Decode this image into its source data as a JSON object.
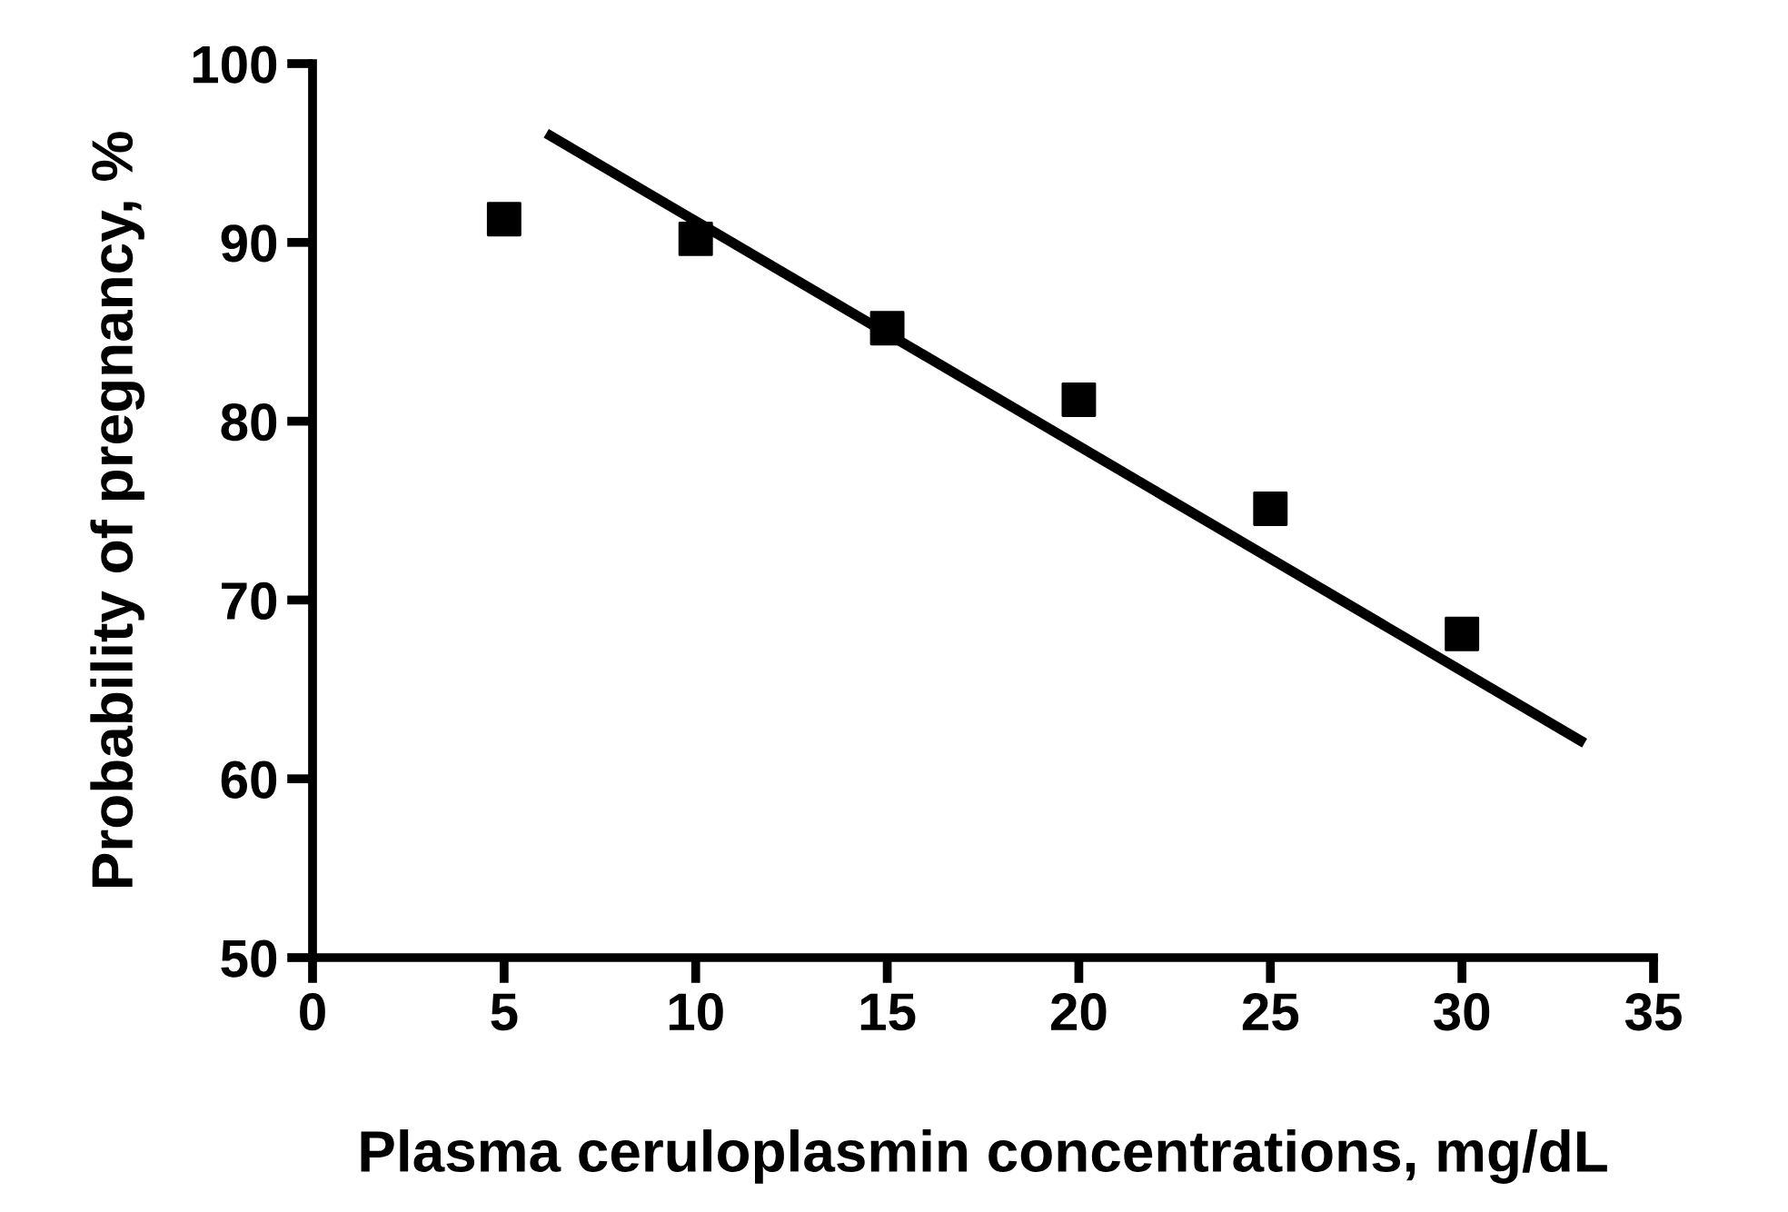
{
  "chart_data": {
    "type": "scatter",
    "xlabel": "Plasma ceruloplasmin concentrations, mg/dL",
    "ylabel": "Probability of pregnancy, %",
    "xlim": [
      0,
      35
    ],
    "ylim": [
      50,
      100
    ],
    "xticks": [
      0,
      5,
      10,
      15,
      20,
      25,
      30,
      35
    ],
    "yticks": [
      50,
      60,
      70,
      80,
      90,
      100
    ],
    "grid": false,
    "legend": false,
    "series": [
      {
        "marker": "square",
        "color": "#000000",
        "x": [
          5,
          10,
          15,
          20,
          25,
          30
        ],
        "values": [
          91.3,
          90.2,
          85.2,
          81.2,
          75.1,
          68.1
        ]
      },
      {
        "type": "line",
        "marker": "none",
        "line_style": "solid",
        "color": "#000000",
        "x": [
          6.1,
          33.2
        ],
        "values": [
          96.1,
          62.0
        ]
      }
    ]
  }
}
